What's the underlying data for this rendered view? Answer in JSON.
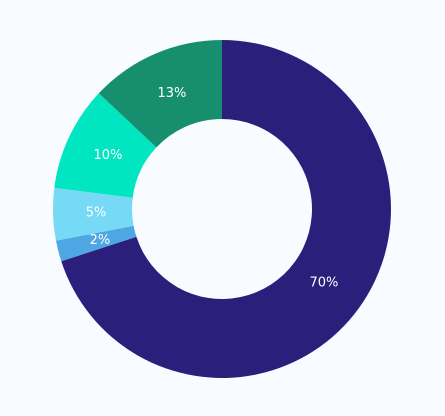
{
  "chart_data": {
    "type": "pie",
    "values": [
      70,
      2,
      5,
      10,
      13
    ],
    "value_labels": [
      "70%",
      "2%",
      "5%",
      "10%",
      "13%"
    ],
    "colors": [
      "#2c1f7c",
      "#4ea6e2",
      "#76d9f6",
      "#00e6c0",
      "#178f6f"
    ]
  }
}
